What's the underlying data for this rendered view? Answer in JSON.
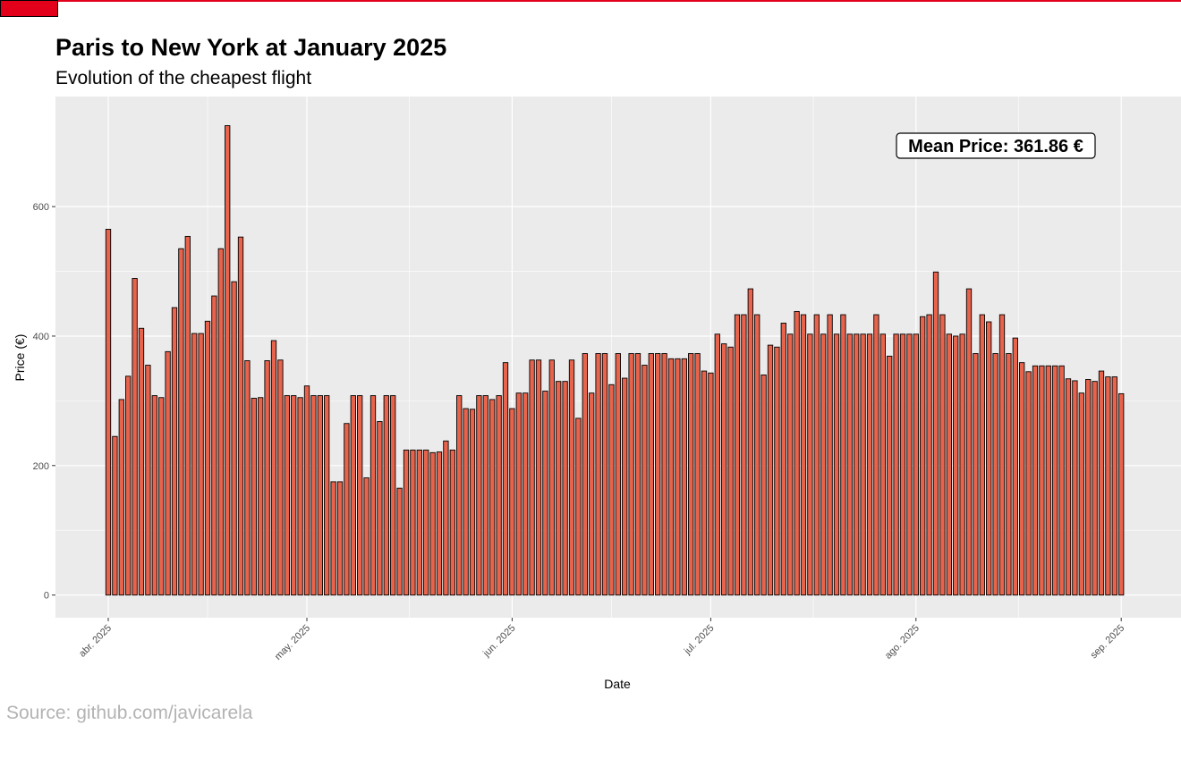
{
  "header": {
    "title": "Paris to New York at January 2025",
    "subtitle": "Evolution of the cheapest flight"
  },
  "footer": {
    "caption": "Source: github.com/javicarela"
  },
  "annotation": {
    "text": "Mean Price: 361.86 €"
  },
  "colors": {
    "bar_fill": "#e8634c",
    "bar_stroke": "#000000",
    "panel": "#ebebeb",
    "grid": "#ffffff",
    "accent": "#e3001b"
  },
  "chart_data": {
    "type": "bar",
    "title": "Paris to New York at January 2025",
    "subtitle": "Evolution of the cheapest flight",
    "xlabel": "Date",
    "ylabel": "Price (€)",
    "ylim": [
      -35,
      770
    ],
    "yticks": [
      0,
      200,
      400,
      600
    ],
    "grid": true,
    "xtick_labels": [
      "abr. 2025",
      "may. 2025",
      "jun. 2025",
      "jul. 2025",
      "ago. 2025",
      "sep. 2025"
    ],
    "start_date": "2025-04-01",
    "values": [
      565,
      245,
      302,
      338,
      489,
      412,
      355,
      308,
      305,
      376,
      444,
      535,
      554,
      404,
      404,
      423,
      462,
      535,
      725,
      484,
      553,
      362,
      304,
      305,
      362,
      393,
      363,
      308,
      308,
      305,
      323,
      308,
      308,
      308,
      175,
      175,
      265,
      308,
      308,
      181,
      308,
      268,
      308,
      308,
      165,
      224,
      224,
      224,
      224,
      220,
      221,
      238,
      224,
      308,
      288,
      287,
      308,
      308,
      302,
      308,
      359,
      288,
      312,
      312,
      363,
      363,
      315,
      363,
      330,
      330,
      363,
      273,
      373,
      312,
      373,
      373,
      325,
      373,
      335,
      373,
      373,
      355,
      373,
      373,
      373,
      365,
      365,
      365,
      373,
      373,
      346,
      343,
      403,
      388,
      383,
      433,
      433,
      473,
      433,
      340,
      386,
      383,
      420,
      403,
      438,
      433,
      403,
      433,
      403,
      433,
      403,
      433,
      403,
      403,
      403,
      403,
      433,
      403,
      369,
      403,
      403,
      403,
      403,
      430,
      433,
      499,
      433,
      403,
      400,
      403,
      473,
      373,
      433,
      422,
      373,
      433,
      373,
      397,
      359,
      345,
      354,
      354,
      354,
      354,
      354,
      334,
      331,
      312,
      333,
      330,
      346,
      337,
      337,
      311
    ]
  }
}
